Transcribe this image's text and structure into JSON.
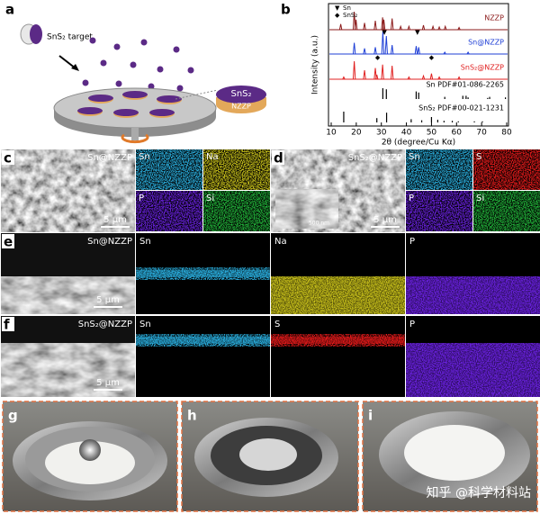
{
  "panels": {
    "a": {
      "label": "a",
      "target": "SnS₂ target",
      "inset_top": "SnS₂",
      "inset_bottom": "NZZP"
    },
    "c": {
      "label": "c",
      "sample": "Sn@NZZP",
      "scale": "5 μm",
      "maps": [
        "Sn",
        "Na",
        "P",
        "Si"
      ]
    },
    "d": {
      "label": "d",
      "sample": "SnS₂@NZZP",
      "scale": "5 μm",
      "inset_scale": "500 nm",
      "maps": [
        "Sn",
        "S",
        "P",
        "Si"
      ]
    },
    "e": {
      "label": "e",
      "sample": "Sn@NZZP",
      "scale": "5 μm",
      "maps": [
        "Sn",
        "Na",
        "P"
      ]
    },
    "f": {
      "label": "f",
      "sample": "SnS₂@NZZP",
      "scale": "5 μm",
      "maps": [
        "Sn",
        "S",
        "P"
      ]
    },
    "g": {
      "label": "g"
    },
    "h": {
      "label": "h"
    },
    "i": {
      "label": "i"
    }
  },
  "watermark": "知乎 @科学材料站",
  "chart_data": {
    "type": "line",
    "panel_label": "b",
    "xlabel": "2θ (degree/Cu Kα)",
    "ylabel": "Intensity (a.u.)",
    "xlim": [
      10,
      80
    ],
    "xticks": [
      10,
      20,
      30,
      40,
      50,
      60,
      70,
      80
    ],
    "legend": [
      {
        "symbol": "▼",
        "text": "Sn"
      },
      {
        "symbol": "◆",
        "text": "SnS₂"
      }
    ],
    "series": [
      {
        "name": "NZZP",
        "color": "#8b1a1a",
        "x": [
          13.8,
          19.2,
          19.9,
          23.3,
          27.6,
          30.5,
          31.0,
          34.3,
          37.7,
          41.0,
          46.8,
          50.6,
          53.1,
          55.5,
          61.0
        ],
        "values": [
          25,
          80,
          45,
          30,
          40,
          55,
          45,
          50,
          15,
          15,
          20,
          15,
          12,
          15,
          10
        ]
      },
      {
        "name": "Sn@NZZP",
        "color": "#1f3fd6",
        "x": [
          19.2,
          23.3,
          27.6,
          30.6,
          32.0,
          34.3,
          43.9,
          44.9,
          55.3,
          64.6
        ],
        "values": [
          50,
          25,
          30,
          100,
          80,
          40,
          35,
          30,
          8,
          8
        ]
      },
      {
        "name": "SnS₂@NZZP",
        "color": "#e02020",
        "x": [
          15.0,
          19.2,
          23.3,
          27.6,
          28.2,
          30.5,
          34.3,
          41.0,
          46.8,
          50.0,
          53.1,
          61.0
        ],
        "values": [
          10,
          80,
          40,
          50,
          20,
          65,
          60,
          10,
          15,
          25,
          10,
          10
        ]
      }
    ],
    "references": [
      {
        "name": "Sn PDF#01-086-2265",
        "color": "#000000",
        "x": [
          30.6,
          32.0,
          43.9,
          44.9,
          55.3,
          62.5,
          63.8,
          64.6,
          72.4,
          73.2,
          79.5
        ],
        "values": [
          100,
          90,
          70,
          60,
          20,
          30,
          30,
          15,
          10,
          20,
          15
        ]
      },
      {
        "name": "SnS₂ PDF#00-021-1231",
        "color": "#000000",
        "x": [
          15.0,
          28.2,
          32.1,
          41.9,
          46.1,
          50.0,
          52.5,
          55.0,
          58.3,
          60.7,
          67.1,
          70.3
        ],
        "values": [
          100,
          40,
          90,
          30,
          20,
          50,
          25,
          15,
          15,
          10,
          10,
          10
        ]
      }
    ],
    "markers": [
      {
        "symbol": "▼",
        "series": 1,
        "x": 31.2
      },
      {
        "symbol": "▼",
        "series": 1,
        "x": 44.4
      },
      {
        "symbol": "◆",
        "series": 2,
        "x": 28.5
      },
      {
        "symbol": "◆",
        "series": 2,
        "x": 50.0
      }
    ]
  }
}
